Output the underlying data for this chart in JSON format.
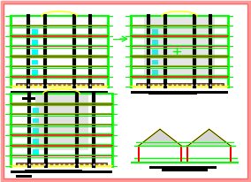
{
  "bg_color": "#ffffff",
  "border_color": "#ff9999",
  "border_inner_color": "#ff6666",
  "green": "#00ff00",
  "red": "#ff0000",
  "black": "#000000",
  "yellow": "#ffff00",
  "cyan": "#00ffff",
  "brown": "#8B4513",
  "gray": "#aaaaaa",
  "white": "#ffffff"
}
